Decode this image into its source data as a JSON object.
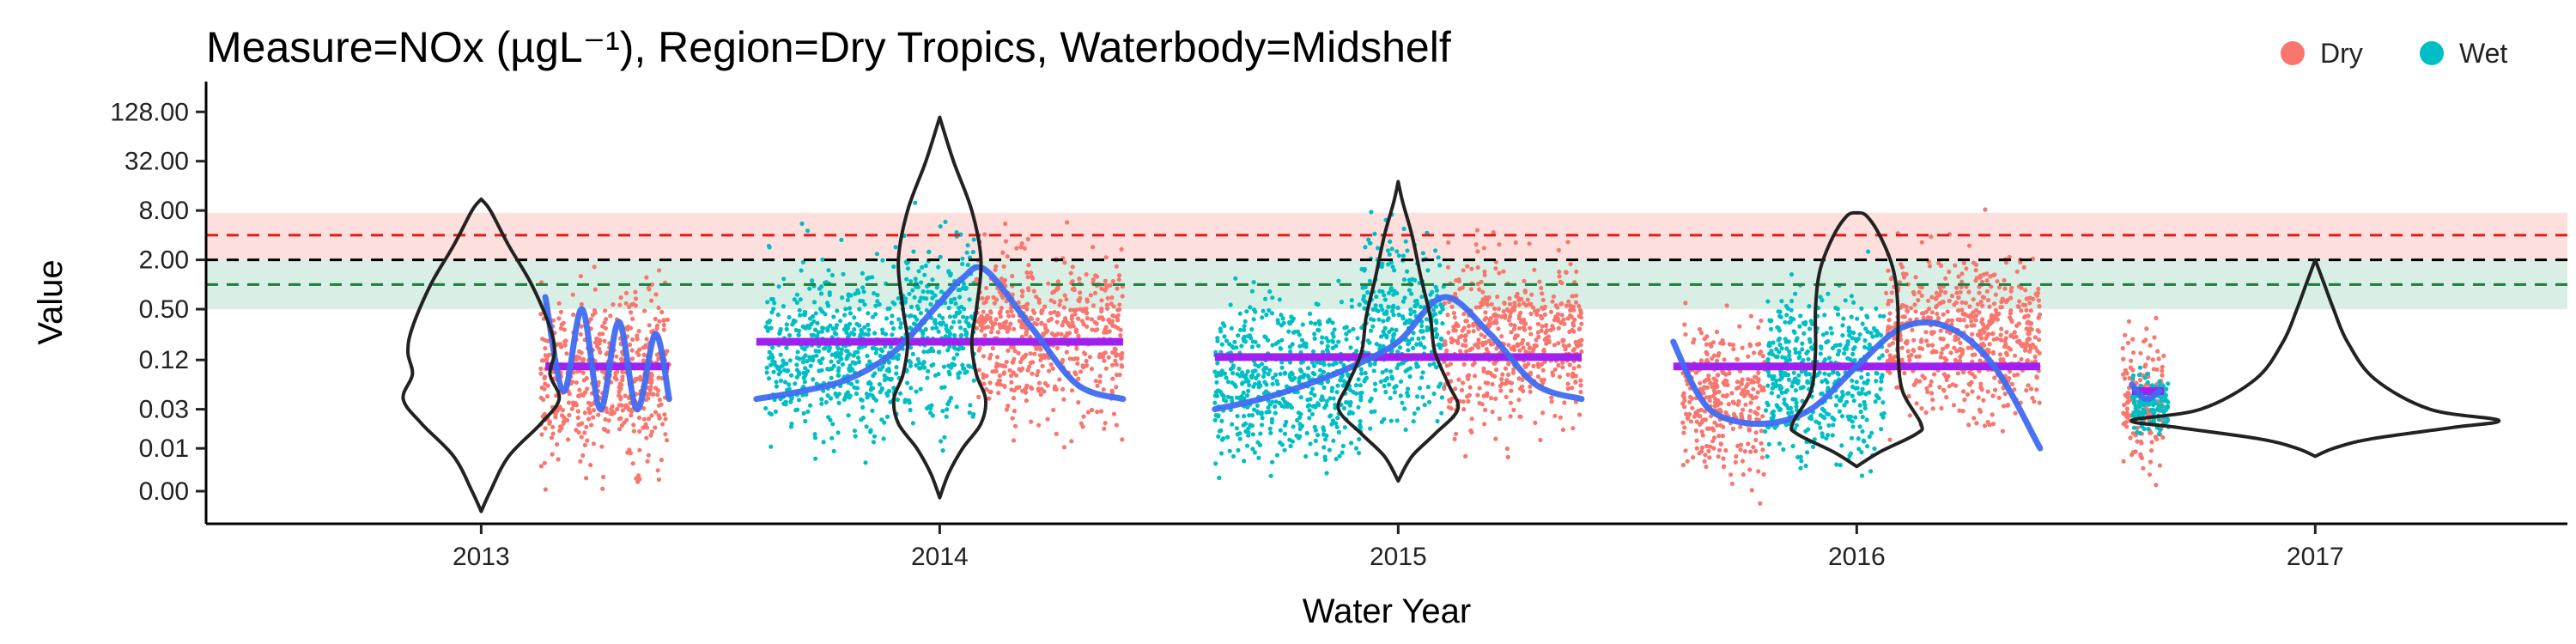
{
  "colors": {
    "dry": "#F8766D",
    "wet": "#00BFC4",
    "trend": "#3F6BF2",
    "median": "#A020F0",
    "upper_threshold": "#E31A1C",
    "guideline": "#000000",
    "lower_threshold": "#1B7F3B",
    "upper_band": "#FDE0DD",
    "lower_band": "#D9EFE5"
  },
  "chart_data": {
    "type": "scatter",
    "title": "Measure=NOx (µgL⁻¹), Region=Dry Tropics, Waterbody=Midshelf",
    "xlabel": "Water Year",
    "ylabel": "Value",
    "y_scale": "log",
    "y_ticks": [
      0.003,
      0.01,
      0.03,
      0.12,
      0.5,
      2,
      8,
      32,
      128
    ],
    "y_tick_labels": [
      "0.00",
      "0.01",
      "0.03",
      "0.12",
      "0.50",
      "2.00",
      "8.00",
      "32.00",
      "128.00"
    ],
    "ylim": [
      0.0012,
      300
    ],
    "x_ticks": [
      2013,
      2014,
      2015,
      2016,
      2017
    ],
    "x_tick_labels": [
      "2013",
      "2014",
      "2015",
      "2016",
      "2017"
    ],
    "xlim": [
      2012.4,
      2017.55
    ],
    "legend": {
      "placement": "top-right",
      "entries": [
        {
          "label": "Dry",
          "color_key": "dry"
        },
        {
          "label": "Wet",
          "color_key": "wet"
        }
      ]
    },
    "reference_lines": [
      {
        "value": 4,
        "color_key": "upper_threshold",
        "style": "dashed"
      },
      {
        "value": 2,
        "color_key": "guideline",
        "style": "dashed"
      },
      {
        "value": 1,
        "color_key": "lower_threshold",
        "style": "dashed"
      }
    ],
    "reference_bands": [
      {
        "from": 2,
        "to": 7.5,
        "color_key": "upper_band"
      },
      {
        "from": 0.5,
        "to": 2,
        "color_key": "lower_band"
      }
    ],
    "seasons": [
      {
        "start": 2013.13,
        "end": 2013.41,
        "season": "dry",
        "base": 0.07,
        "spread": 0.9
      },
      {
        "start": 2013.62,
        "end": 2013.92,
        "season": "wet",
        "base": 0.15,
        "spread": 0.9
      },
      {
        "start": 2013.92,
        "end": 2014.08,
        "season": "wet",
        "base": 0.3,
        "spread": 1.0
      },
      {
        "start": 2014.08,
        "end": 2014.4,
        "season": "dry",
        "base": 0.25,
        "spread": 0.9
      },
      {
        "start": 2014.6,
        "end": 2014.92,
        "season": "wet",
        "base": 0.07,
        "spread": 0.9
      },
      {
        "start": 2014.92,
        "end": 2015.1,
        "season": "wet",
        "base": 0.3,
        "spread": 1.0
      },
      {
        "start": 2015.1,
        "end": 2015.4,
        "season": "dry",
        "base": 0.2,
        "spread": 0.9
      },
      {
        "start": 2015.62,
        "end": 2015.8,
        "season": "dry",
        "base": 0.04,
        "spread": 0.8
      },
      {
        "start": 2015.8,
        "end": 2016.06,
        "season": "wet",
        "base": 0.08,
        "spread": 0.9
      },
      {
        "start": 2016.06,
        "end": 2016.4,
        "season": "dry",
        "base": 0.25,
        "spread": 0.9
      },
      {
        "start": 2016.58,
        "end": 2016.67,
        "season": "dry",
        "base": 0.04,
        "spread": 0.7
      },
      {
        "start": 2016.6,
        "end": 2016.68,
        "season": "wet",
        "base": 0.035,
        "spread": 0.3
      }
    ],
    "medians": [
      {
        "year": 2013,
        "start": 2013.14,
        "end": 2013.41,
        "value": 0.1
      },
      {
        "year": 2014,
        "start": 2013.6,
        "end": 2014.4,
        "value": 0.2
      },
      {
        "year": 2015,
        "start": 2014.6,
        "end": 2015.4,
        "value": 0.13
      },
      {
        "year": 2016,
        "start": 2015.6,
        "end": 2016.4,
        "value": 0.1
      },
      {
        "year": 2017,
        "start": 2016.6,
        "end": 2016.67,
        "value": 0.05
      }
    ],
    "trend_lines": [
      {
        "x": [
          2013.14,
          2013.18,
          2013.22,
          2013.26,
          2013.3,
          2013.34,
          2013.38,
          2013.41
        ],
        "y": [
          0.7,
          0.05,
          0.5,
          0.03,
          0.35,
          0.03,
          0.25,
          0.04
        ]
      },
      {
        "x": [
          2013.6,
          2013.7,
          2013.8,
          2013.9,
          2014.0,
          2014.05,
          2014.1,
          2014.2,
          2014.3,
          2014.4
        ],
        "y": [
          0.04,
          0.05,
          0.07,
          0.15,
          0.6,
          1.2,
          1.5,
          0.3,
          0.06,
          0.04
        ]
      },
      {
        "x": [
          2014.6,
          2014.7,
          2014.8,
          2014.9,
          2015.0,
          2015.1,
          2015.2,
          2015.3,
          2015.4
        ],
        "y": [
          0.03,
          0.04,
          0.06,
          0.1,
          0.2,
          0.7,
          0.25,
          0.06,
          0.04
        ]
      },
      {
        "x": [
          2015.6,
          2015.65,
          2015.7,
          2015.8,
          2015.9,
          2016.0,
          2016.1,
          2016.2,
          2016.3,
          2016.4
        ],
        "y": [
          0.2,
          0.05,
          0.025,
          0.02,
          0.03,
          0.1,
          0.3,
          0.3,
          0.1,
          0.01
        ]
      },
      {
        "x": [
          2016.6,
          2016.63,
          2016.66
        ],
        "y": [
          0.06,
          0.04,
          0.05
        ]
      }
    ],
    "violins": [
      {
        "year": 2013,
        "y": [
          0.0017,
          0.003,
          0.008,
          0.02,
          0.04,
          0.08,
          0.15,
          0.3,
          1,
          3,
          8,
          11
        ],
        "w": [
          0,
          0.02,
          0.06,
          0.13,
          0.17,
          0.15,
          0.16,
          0.15,
          0.11,
          0.06,
          0.02,
          0
        ]
      },
      {
        "year": 2014,
        "y": [
          0.0025,
          0.005,
          0.01,
          0.02,
          0.04,
          0.08,
          0.2,
          0.5,
          2,
          8,
          32,
          110
        ],
        "w": [
          0,
          0.02,
          0.05,
          0.09,
          0.1,
          0.08,
          0.07,
          0.08,
          0.09,
          0.07,
          0.03,
          0
        ]
      },
      {
        "year": 2015,
        "y": [
          0.004,
          0.008,
          0.015,
          0.03,
          0.06,
          0.15,
          0.4,
          1.2,
          4,
          10,
          18
        ],
        "w": [
          0,
          0.03,
          0.08,
          0.13,
          0.11,
          0.08,
          0.07,
          0.05,
          0.03,
          0.01,
          0
        ]
      },
      {
        "year": 2016,
        "y": [
          0.006,
          0.009,
          0.015,
          0.02,
          0.05,
          0.15,
          0.5,
          1.5,
          4,
          7,
          7.5
        ],
        "w": [
          0,
          0.05,
          0.13,
          0.14,
          0.1,
          0.09,
          0.09,
          0.08,
          0.05,
          0.02,
          0
        ]
      },
      {
        "year": 2017,
        "y": [
          0.008,
          0.01,
          0.013,
          0.018,
          0.022,
          0.03,
          0.07,
          0.2,
          0.5,
          1,
          2
        ],
        "w": [
          0,
          0.04,
          0.12,
          0.3,
          0.4,
          0.25,
          0.13,
          0.07,
          0.04,
          0.02,
          0
        ]
      }
    ]
  }
}
